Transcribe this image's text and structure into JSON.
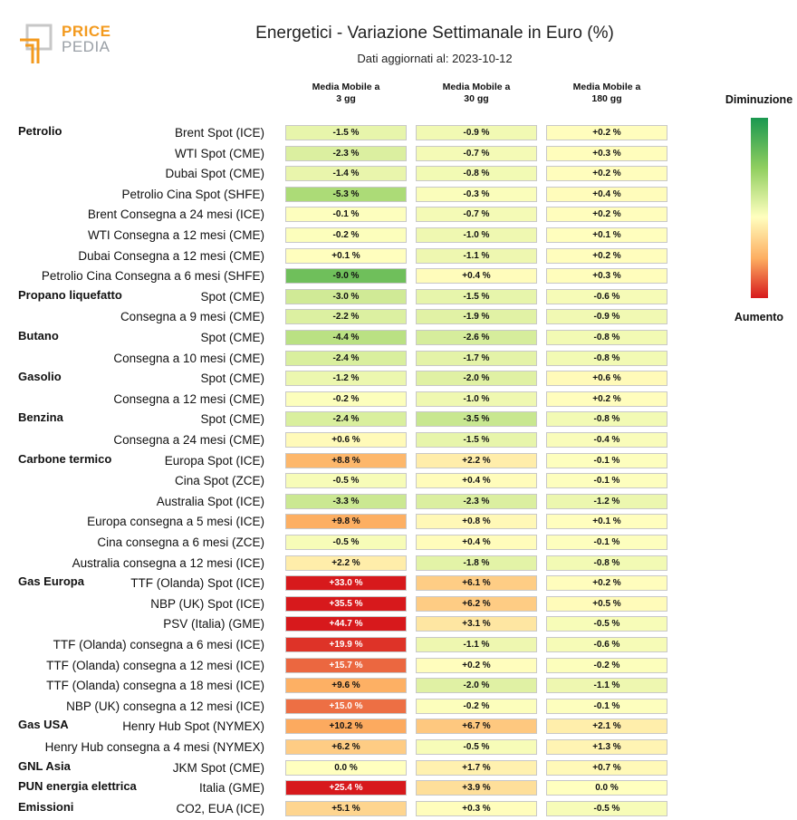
{
  "logo": {
    "line1": "PRICE",
    "line2": "PEDIA"
  },
  "chart_data": {
    "type": "heatmap",
    "title": "Energetici - Variazione Settimanale in Euro (%)",
    "subtitle": "Dati aggiornati al: 2023-10-12",
    "columns": [
      "Media Mobile a\n3 gg",
      "Media Mobile a\n30 gg",
      "Media Mobile a\n180 gg"
    ],
    "legend": {
      "top": "Diminuzione",
      "bottom": "Aumento"
    },
    "colors": {
      "strong_decrease": "#1a9850",
      "neutral": "#ffffbf",
      "strong_increase": "#d7191c"
    },
    "rows": [
      {
        "group": "Petrolio",
        "label": "Brent Spot (ICE)",
        "values": [
          -1.5,
          -0.9,
          0.2
        ],
        "text": [
          "-1.5 %",
          "-0.9 %",
          "+0.2 %"
        ]
      },
      {
        "group": "",
        "label": "WTI Spot (CME)",
        "values": [
          -2.3,
          -0.7,
          0.3
        ],
        "text": [
          "-2.3 %",
          "-0.7 %",
          "+0.3 %"
        ]
      },
      {
        "group": "",
        "label": "Dubai Spot (CME)",
        "values": [
          -1.4,
          -0.8,
          0.2
        ],
        "text": [
          "-1.4 %",
          "-0.8 %",
          "+0.2 %"
        ]
      },
      {
        "group": "",
        "label": "Petrolio Cina Spot (SHFE)",
        "values": [
          -5.3,
          -0.3,
          0.4
        ],
        "text": [
          "-5.3 %",
          "-0.3 %",
          "+0.4 %"
        ]
      },
      {
        "group": "",
        "label": "Brent Consegna a 24 mesi (ICE)",
        "values": [
          -0.1,
          -0.7,
          0.2
        ],
        "text": [
          "-0.1 %",
          "-0.7 %",
          "+0.2 %"
        ]
      },
      {
        "group": "",
        "label": "WTI Consegna a 12 mesi (CME)",
        "values": [
          -0.2,
          -1.0,
          0.1
        ],
        "text": [
          "-0.2 %",
          "-1.0 %",
          "+0.1 %"
        ]
      },
      {
        "group": "",
        "label": "Dubai Consegna a 12 mesi (CME)",
        "values": [
          0.1,
          -1.1,
          0.2
        ],
        "text": [
          "+0.1 %",
          "-1.1 %",
          "+0.2 %"
        ]
      },
      {
        "group": "",
        "label": "Petrolio Cina Consegna a 6 mesi (SHFE)",
        "values": [
          -9.0,
          0.4,
          0.3
        ],
        "text": [
          "-9.0 %",
          "+0.4 %",
          "+0.3 %"
        ]
      },
      {
        "group": "Propano liquefatto",
        "label": "Spot (CME)",
        "values": [
          -3.0,
          -1.5,
          -0.6
        ],
        "text": [
          "-3.0 %",
          "-1.5 %",
          "-0.6 %"
        ]
      },
      {
        "group": "",
        "label": "Consegna a 9 mesi (CME)",
        "values": [
          -2.2,
          -1.9,
          -0.9
        ],
        "text": [
          "-2.2 %",
          "-1.9 %",
          "-0.9 %"
        ]
      },
      {
        "group": "Butano",
        "label": "Spot (CME)",
        "values": [
          -4.4,
          -2.6,
          -0.8
        ],
        "text": [
          "-4.4 %",
          "-2.6 %",
          "-0.8 %"
        ]
      },
      {
        "group": "",
        "label": "Consegna a 10 mesi (CME)",
        "values": [
          -2.4,
          -1.7,
          -0.8
        ],
        "text": [
          "-2.4 %",
          "-1.7 %",
          "-0.8 %"
        ]
      },
      {
        "group": "Gasolio",
        "label": "Spot (CME)",
        "values": [
          -1.2,
          -2.0,
          0.6
        ],
        "text": [
          "-1.2 %",
          "-2.0 %",
          "+0.6 %"
        ]
      },
      {
        "group": "",
        "label": "Consegna a 12 mesi (CME)",
        "values": [
          -0.2,
          -1.0,
          0.2
        ],
        "text": [
          "-0.2 %",
          "-1.0 %",
          "+0.2 %"
        ]
      },
      {
        "group": "Benzina",
        "label": "Spot (CME)",
        "values": [
          -2.4,
          -3.5,
          -0.8
        ],
        "text": [
          "-2.4 %",
          "-3.5 %",
          "-0.8 %"
        ]
      },
      {
        "group": "",
        "label": "Consegna a 24 mesi (CME)",
        "values": [
          0.6,
          -1.5,
          -0.4
        ],
        "text": [
          "+0.6 %",
          "-1.5 %",
          "-0.4 %"
        ]
      },
      {
        "group": "Carbone termico",
        "label": "Europa Spot (ICE)",
        "values": [
          8.8,
          2.2,
          -0.1
        ],
        "text": [
          "+8.8 %",
          "+2.2 %",
          "-0.1 %"
        ]
      },
      {
        "group": "",
        "label": "Cina Spot (ZCE)",
        "values": [
          -0.5,
          0.4,
          -0.1
        ],
        "text": [
          "-0.5 %",
          "+0.4 %",
          "-0.1 %"
        ]
      },
      {
        "group": "",
        "label": "Australia Spot (ICE)",
        "values": [
          -3.3,
          -2.3,
          -1.2
        ],
        "text": [
          "-3.3 %",
          "-2.3 %",
          "-1.2 %"
        ]
      },
      {
        "group": "",
        "label": "Europa consegna a 5 mesi (ICE)",
        "values": [
          9.8,
          0.8,
          0.1
        ],
        "text": [
          "+9.8 %",
          "+0.8 %",
          "+0.1 %"
        ]
      },
      {
        "group": "",
        "label": "Cina consegna a 6 mesi (ZCE)",
        "values": [
          -0.5,
          0.4,
          -0.1
        ],
        "text": [
          "-0.5 %",
          "+0.4 %",
          "-0.1 %"
        ]
      },
      {
        "group": "",
        "label": "Australia consegna a 12 mesi (ICE)",
        "values": [
          2.2,
          -1.8,
          -0.8
        ],
        "text": [
          "+2.2 %",
          "-1.8 %",
          "-0.8 %"
        ]
      },
      {
        "group": "Gas Europa",
        "label": "TTF (Olanda) Spot (ICE)",
        "values": [
          33.0,
          6.1,
          0.2
        ],
        "text": [
          "+33.0 %",
          "+6.1 %",
          "+0.2 %"
        ]
      },
      {
        "group": "",
        "label": "NBP (UK) Spot (ICE)",
        "values": [
          35.5,
          6.2,
          0.5
        ],
        "text": [
          "+35.5 %",
          "+6.2 %",
          "+0.5 %"
        ]
      },
      {
        "group": "",
        "label": "PSV (Italia) (GME)",
        "values": [
          44.7,
          3.1,
          -0.5
        ],
        "text": [
          "+44.7 %",
          "+3.1 %",
          "-0.5 %"
        ]
      },
      {
        "group": "",
        "label": "TTF (Olanda) consegna a 6 mesi (ICE)",
        "values": [
          19.9,
          -1.1,
          -0.6
        ],
        "text": [
          "+19.9 %",
          "-1.1 %",
          "-0.6 %"
        ]
      },
      {
        "group": "",
        "label": "TTF (Olanda) consegna a 12 mesi (ICE)",
        "values": [
          15.7,
          0.2,
          -0.2
        ],
        "text": [
          "+15.7 %",
          "+0.2 %",
          "-0.2 %"
        ]
      },
      {
        "group": "",
        "label": "TTF (Olanda) consegna a 18 mesi (ICE)",
        "values": [
          9.6,
          -2.0,
          -1.1
        ],
        "text": [
          "+9.6 %",
          "-2.0 %",
          "-1.1 %"
        ]
      },
      {
        "group": "",
        "label": "NBP (UK) consegna a 12 mesi (ICE)",
        "values": [
          15.0,
          -0.2,
          -0.1
        ],
        "text": [
          "+15.0 %",
          "-0.2 %",
          "-0.1 %"
        ]
      },
      {
        "group": "Gas USA",
        "label": "Henry Hub Spot (NYMEX)",
        "values": [
          10.2,
          6.7,
          2.1
        ],
        "text": [
          "+10.2 %",
          "+6.7 %",
          "+2.1 %"
        ]
      },
      {
        "group": "",
        "label": "Henry Hub consegna a 4 mesi (NYMEX)",
        "values": [
          6.2,
          -0.5,
          1.3
        ],
        "text": [
          "+6.2 %",
          "-0.5 %",
          "+1.3 %"
        ]
      },
      {
        "group": "GNL Asia",
        "label": "JKM Spot (CME)",
        "values": [
          0.0,
          1.7,
          0.7
        ],
        "text": [
          "0.0 %",
          "+1.7 %",
          "+0.7 %"
        ]
      },
      {
        "group": "PUN energia elettrica",
        "label": "Italia (GME)",
        "values": [
          25.4,
          3.9,
          0.0
        ],
        "text": [
          "+25.4 %",
          "+3.9 %",
          "0.0 %"
        ]
      },
      {
        "group": "Emissioni",
        "label": "CO2, EUA (ICE)",
        "values": [
          5.1,
          0.3,
          -0.5
        ],
        "text": [
          "+5.1 %",
          "+0.3 %",
          "-0.5 %"
        ]
      }
    ]
  }
}
